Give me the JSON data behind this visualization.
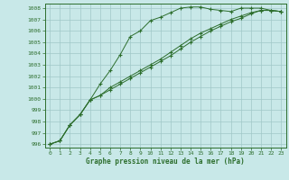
{
  "x": [
    0,
    1,
    2,
    3,
    4,
    5,
    6,
    7,
    8,
    9,
    10,
    11,
    12,
    13,
    14,
    15,
    16,
    17,
    18,
    19,
    20,
    21,
    22,
    23
  ],
  "line1": [
    996.0,
    996.3,
    997.7,
    998.6,
    999.9,
    1001.3,
    1002.5,
    1003.9,
    1005.5,
    1006.0,
    1006.9,
    1007.2,
    1007.6,
    1008.0,
    1008.1,
    1008.1,
    1007.9,
    1007.8,
    1007.7,
    1008.0,
    1008.0,
    1008.0,
    1007.8,
    1007.7
  ],
  "line2": [
    996.0,
    996.3,
    997.7,
    998.6,
    999.9,
    1000.3,
    1001.0,
    1001.5,
    1002.0,
    1002.5,
    1003.0,
    1003.5,
    1004.1,
    1004.7,
    1005.3,
    1005.8,
    1006.2,
    1006.6,
    1007.0,
    1007.3,
    1007.6,
    1007.8,
    1007.8,
    1007.7
  ],
  "line3": [
    996.0,
    996.3,
    997.7,
    998.6,
    999.9,
    1000.3,
    1000.8,
    1001.3,
    1001.8,
    1002.3,
    1002.8,
    1003.3,
    1003.8,
    1004.4,
    1005.0,
    1005.5,
    1006.0,
    1006.4,
    1006.8,
    1007.1,
    1007.5,
    1007.8,
    1007.8,
    1007.7
  ],
  "bg_color": "#c8e8e8",
  "grid_color": "#a0c8c8",
  "line_color": "#2d6e2d",
  "xlabel": "Graphe pression niveau de la mer (hPa)",
  "ylim": [
    996,
    1008
  ],
  "xlim": [
    0,
    23
  ],
  "yticks": [
    996,
    997,
    998,
    999,
    1000,
    1001,
    1002,
    1003,
    1004,
    1005,
    1006,
    1007,
    1008
  ],
  "xticks": [
    0,
    1,
    2,
    3,
    4,
    5,
    6,
    7,
    8,
    9,
    10,
    11,
    12,
    13,
    14,
    15,
    16,
    17,
    18,
    19,
    20,
    21,
    22,
    23
  ]
}
